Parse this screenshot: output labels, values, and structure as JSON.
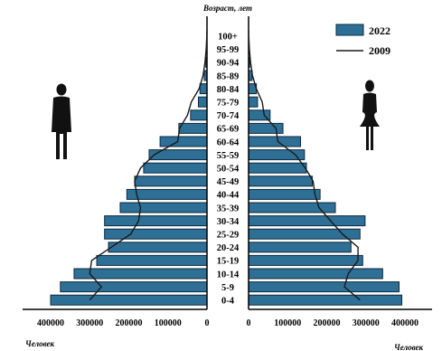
{
  "chart_data": {
    "type": "bar",
    "subtype": "population-pyramid",
    "title": "Возраст, лет",
    "xlabel_left": "Человек",
    "xlabel_right": "Человек",
    "age_groups": [
      "0-4",
      "5-9",
      "10-14",
      "15-19",
      "20-24",
      "25-29",
      "30-34",
      "35-39",
      "40-44",
      "45-49",
      "50-54",
      "55-59",
      "60-64",
      "65-69",
      "70-74",
      "75-79",
      "80-84",
      "85-89",
      "90-94",
      "95-99",
      "100+"
    ],
    "left_ticks": [
      "400000",
      "300000",
      "200000",
      "100000",
      "0"
    ],
    "right_ticks": [
      "0",
      "100000",
      "200000",
      "300000",
      "400000"
    ],
    "xlim": [
      0,
      420000
    ],
    "colors": {
      "bar": "#2e6f96",
      "bar_border": "#0d2a3d",
      "line": "#1a1a1a"
    },
    "series": [
      {
        "name": "2022",
        "kind": "bar",
        "left": [
          400000,
          375000,
          340000,
          282000,
          252000,
          262000,
          262000,
          222000,
          205000,
          185000,
          162000,
          148000,
          120000,
          72000,
          42000,
          22000,
          18000,
          7000,
          3000,
          1000,
          500
        ],
        "right": [
          392000,
          385000,
          343000,
          292000,
          262000,
          285000,
          298000,
          222000,
          183000,
          163000,
          148000,
          143000,
          133000,
          88000,
          55000,
          23000,
          20000,
          9000,
          3000,
          1000,
          500
        ]
      },
      {
        "name": "2009",
        "kind": "line",
        "left": [
          300000,
          270000,
          300000,
          295000,
          245000,
          195000,
          175000,
          170000,
          180000,
          185000,
          170000,
          135000,
          75000,
          70000,
          50000,
          40000,
          20000,
          10000,
          5000,
          2000,
          500
        ],
        "right": [
          285000,
          245000,
          255000,
          280000,
          280000,
          240000,
          210000,
          180000,
          170000,
          165000,
          145000,
          120000,
          75000,
          70000,
          40000,
          35000,
          20000,
          10000,
          5000,
          2000,
          500
        ]
      }
    ],
    "legend": {
      "position": "top-right",
      "items": [
        "2022",
        "2009"
      ]
    },
    "icons": {
      "left": "male-silhouette-icon",
      "right": "female-silhouette-icon"
    }
  }
}
